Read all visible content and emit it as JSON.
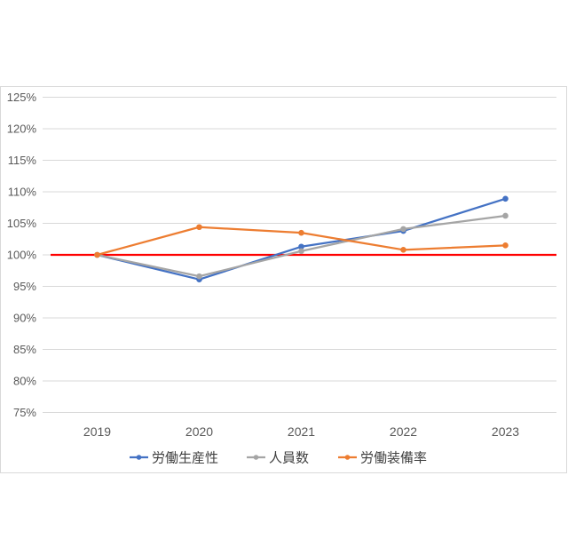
{
  "chart_data": {
    "type": "line",
    "title": "",
    "xlabel": "",
    "ylabel": "",
    "categories": [
      "2019",
      "2020",
      "2021",
      "2022",
      "2023"
    ],
    "ylim": [
      75,
      125
    ],
    "y_tick_step": 5,
    "y_tick_labels": [
      "75%",
      "80%",
      "85%",
      "90%",
      "95%",
      "100%",
      "105%",
      "110%",
      "115%",
      "120%",
      "125%"
    ],
    "grid": true,
    "legend_position": "bottom",
    "reference_line": {
      "value": 100,
      "color": "#FF0000"
    },
    "series": [
      {
        "name": "労働生産性",
        "color": "#4472C4",
        "values": [
          100,
          96.1,
          101.3,
          103.8,
          108.9
        ]
      },
      {
        "name": "人員数",
        "color": "#A5A5A5",
        "values": [
          100,
          96.6,
          100.6,
          104.1,
          106.2
        ]
      },
      {
        "name": "労働装備率",
        "color": "#ED7D31",
        "values": [
          100,
          104.4,
          103.5,
          100.8,
          101.5
        ]
      }
    ]
  }
}
